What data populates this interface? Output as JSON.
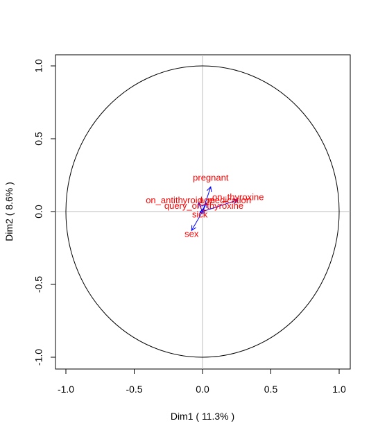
{
  "chart_data": {
    "type": "scatter",
    "subtype": "pca-correlation-circle",
    "title": "",
    "xlabel": "Dim1 ( 11.3% )",
    "ylabel": "Dim2 ( 8.6% )",
    "xlim": [
      -1.0,
      1.0
    ],
    "ylim": [
      -1.0,
      1.0
    ],
    "x_ticks": [
      "-1.0",
      "-0.5",
      "0.0",
      "0.5",
      "1.0"
    ],
    "y_ticks": [
      "-1.0",
      "-0.5",
      "0.0",
      "0.5",
      "1.0"
    ],
    "unit_circle": true,
    "reference_lines": [
      0,
      0
    ],
    "grid": false,
    "arrow_color": "#0000ff",
    "label_color": "#ff0000",
    "variables": [
      {
        "name": "pregnant",
        "x": 0.06,
        "y": 0.17
      },
      {
        "name": "on_thyroxine",
        "x": 0.26,
        "y": 0.08
      },
      {
        "name": "age",
        "x": 0.03,
        "y": 0.06
      },
      {
        "name": "on_antithyroid_medication",
        "x": -0.03,
        "y": 0.06
      },
      {
        "name": "query_on_thyroxine",
        "x": 0.01,
        "y": 0.02
      },
      {
        "name": "sick",
        "x": -0.02,
        "y": -0.01
      },
      {
        "name": "sex",
        "x": -0.08,
        "y": -0.13
      }
    ]
  }
}
